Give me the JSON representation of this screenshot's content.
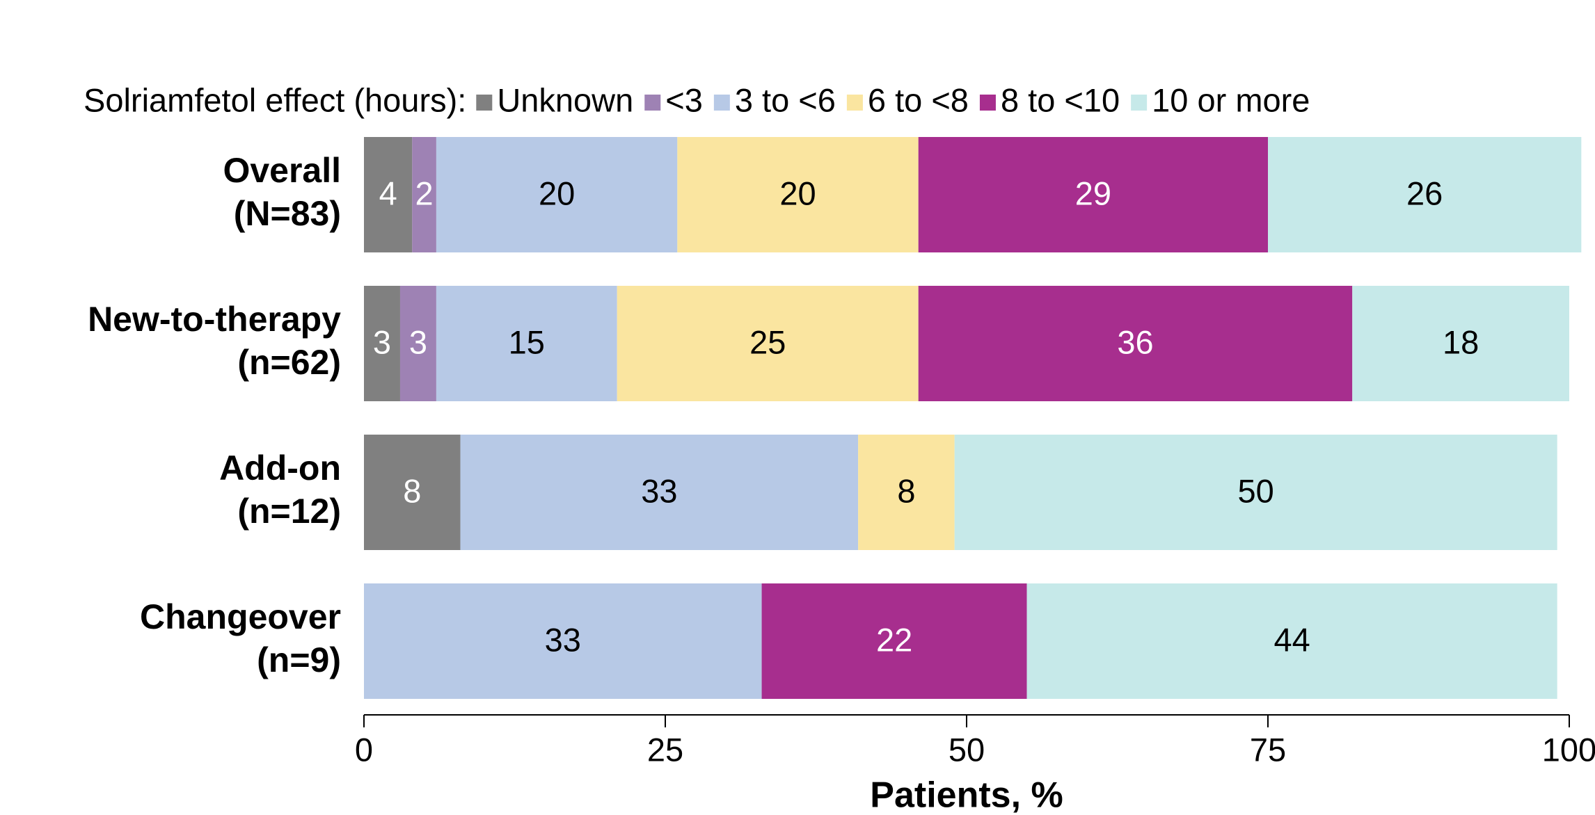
{
  "chart_data": {
    "type": "stacked_barh",
    "legend_title": "Solriamfetol effect (hours):",
    "categories": [
      [
        "Overall",
        "(N=83)"
      ],
      [
        "New-to-therapy",
        "(n=62)"
      ],
      [
        "Add-on",
        "(n=12)"
      ],
      [
        "Changeover",
        "(n=9)"
      ]
    ],
    "series": [
      {
        "name": "Unknown",
        "color": "#808080",
        "label_color": "#ffffff",
        "values": [
          4,
          3,
          8,
          null
        ]
      },
      {
        "name": "<3",
        "color": "#9e82b4",
        "label_color": "#ffffff",
        "values": [
          2,
          3,
          null,
          null
        ]
      },
      {
        "name": "3 to <6",
        "color": "#b7c9e6",
        "label_color": "#000000",
        "values": [
          20,
          15,
          33,
          33
        ]
      },
      {
        "name": "6 to <8",
        "color": "#fae5a0",
        "label_color": "#000000",
        "values": [
          20,
          25,
          8,
          null
        ]
      },
      {
        "name": "8 to <10",
        "color": "#a72e8e",
        "label_color": "#ffffff",
        "values": [
          29,
          36,
          null,
          22
        ]
      },
      {
        "name": "10 or more",
        "color": "#c6e9e9",
        "label_color": "#000000",
        "values": [
          26,
          18,
          50,
          44
        ]
      }
    ],
    "xlabel": "Patients, %",
    "xlim": [
      0,
      100
    ],
    "xticks": [
      0,
      25,
      50,
      75,
      100
    ]
  }
}
